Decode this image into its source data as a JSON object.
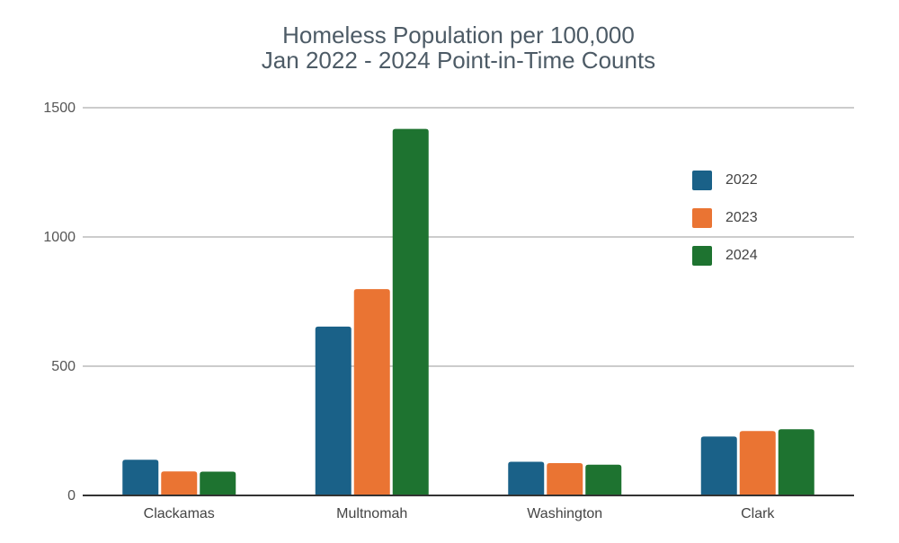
{
  "chart_data": {
    "type": "bar",
    "title_lines": [
      "Homeless Population per 100,000",
      "Jan 2022 - 2024 Point-in-Time Counts"
    ],
    "xlabel": "",
    "ylabel": "",
    "categories": [
      "Clackamas",
      "Multnomah",
      "Washington",
      "Clark"
    ],
    "series": [
      {
        "name": "2022",
        "color": "#1a6188",
        "values": [
          138,
          653,
          130,
          228
        ]
      },
      {
        "name": "2023",
        "color": "#ea7433",
        "values": [
          93,
          798,
          125,
          249
        ]
      },
      {
        "name": "2024",
        "color": "#1e7330",
        "values": [
          92,
          1418,
          119,
          256
        ]
      }
    ],
    "ylim": [
      0,
      1500
    ],
    "yticks": [
      0,
      500,
      1000,
      1500
    ],
    "grid": true,
    "legend_position": "right"
  }
}
